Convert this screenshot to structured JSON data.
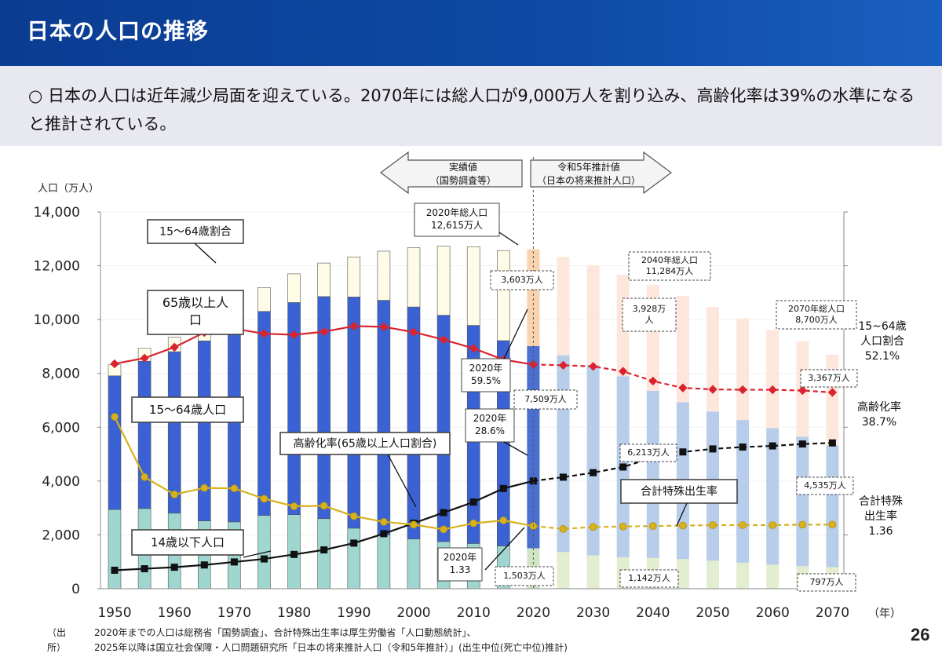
{
  "header": {
    "title": "日本の人口の推移",
    "page_number": "26"
  },
  "summary": {
    "bullet": "○",
    "text": "日本の人口は近年減少局面を迎えている。2070年には総人口が9,000万人を割り込み、高齢化率は39%の水準になると推計されている。"
  },
  "source": {
    "label": "（出所）",
    "line1": "2020年までの人口は総務省「国勢調査」、合計特殊出生率は厚生労働省「人口動態統計」、",
    "line2": "2025年以降は国立社会保障・人口問題研究所「日本の将来推計人口（令和5年推計）」(出生中位(死亡中位)推計)"
  },
  "chart_data": {
    "type": "bar",
    "ylabel": "人口（万人）",
    "xlabel": "（年）",
    "ylim": [
      0,
      14000
    ],
    "yticks": [
      "0",
      "2,000",
      "4,000",
      "6,000",
      "8,000",
      "10,000",
      "12,000",
      "14,000"
    ],
    "xticks": [
      "1950",
      "1960",
      "1970",
      "1980",
      "1990",
      "2000",
      "2010",
      "2020",
      "2030",
      "2040",
      "2050",
      "2060",
      "2070"
    ],
    "projection_start_year": 2020,
    "years": [
      1950,
      1955,
      1960,
      1965,
      1970,
      1975,
      1980,
      1985,
      1990,
      1995,
      2000,
      2005,
      2010,
      2015,
      2020,
      2025,
      2030,
      2035,
      2040,
      2045,
      2050,
      2055,
      2060,
      2065,
      2070
    ],
    "series": [
      {
        "name": "14歳以下人口",
        "values": [
          2943,
          2980,
          2807,
          2517,
          2482,
          2722,
          2751,
          2603,
          2249,
          2001,
          1847,
          1752,
          1680,
          1589,
          1503,
          1363,
          1240,
          1169,
          1142,
          1103,
          1041,
          966,
          893,
          837,
          797
        ]
      },
      {
        "name": "15〜64歳人口",
        "values": [
          4966,
          5473,
          6000,
          6692,
          7157,
          7581,
          7883,
          8251,
          8590,
          8716,
          8622,
          8409,
          8103,
          7629,
          7509,
          7310,
          7076,
          6722,
          6213,
          5832,
          5540,
          5302,
          5078,
          4809,
          4535
        ]
      },
      {
        "name": "65歳以上人口",
        "values": [
          411,
          479,
          535,
          618,
          733,
          887,
          1065,
          1247,
          1489,
          1826,
          2201,
          2567,
          2925,
          3347,
          3603,
          3653,
          3696,
          3773,
          3928,
          3945,
          3888,
          3778,
          3644,
          3542,
          3367
        ]
      }
    ],
    "ratio_axis": {
      "min": 0,
      "max": 100
    },
    "lines": [
      {
        "name": "15〜64歳割合",
        "values": [
          59.7,
          61.2,
          64.1,
          68.0,
          69.0,
          67.7,
          67.4,
          68.2,
          69.7,
          69.5,
          68.1,
          66.1,
          63.8,
          60.8,
          59.5,
          59.3,
          59.0,
          57.7,
          55.1,
          53.3,
          52.9,
          52.8,
          52.8,
          52.6,
          52.1
        ]
      },
      {
        "name": "高齢化率（65歳以上人口割合）",
        "values": [
          4.9,
          5.3,
          5.7,
          6.3,
          7.1,
          7.9,
          9.1,
          10.3,
          12.1,
          14.6,
          17.4,
          20.2,
          23.0,
          26.6,
          28.6,
          29.6,
          30.8,
          32.3,
          34.8,
          36.3,
          37.1,
          37.6,
          37.9,
          38.4,
          38.7
        ]
      },
      {
        "name": "合計特殊出生率",
        "axis_max": 8,
        "values": [
          3.65,
          2.37,
          2.0,
          2.14,
          2.13,
          1.91,
          1.75,
          1.76,
          1.54,
          1.42,
          1.36,
          1.26,
          1.39,
          1.45,
          1.33,
          1.27,
          1.31,
          1.32,
          1.33,
          1.34,
          1.35,
          1.35,
          1.35,
          1.36,
          1.36
        ]
      }
    ],
    "arrows": {
      "actual": [
        "実績値",
        "（国勢調査等）"
      ],
      "projection": [
        "令和5年推計値",
        "（日本の将来推計人口）"
      ]
    },
    "labels": {
      "wa_share": "15〜64歳割合",
      "elderly": [
        "65歳以上人",
        "口"
      ],
      "wa_pop": "15〜64歳人口",
      "aging": "高齢化率(65歳以上人口割合)",
      "child": "14歳以下人口",
      "tfr": "合計特殊出生率"
    },
    "annotations": {
      "total_2020": [
        "2020年総人口",
        "12,615万人"
      ],
      "total_2040": [
        "2040年総人口",
        "11,284万人"
      ],
      "total_2070": [
        "2070年総人口",
        "8,700万人"
      ],
      "elderly_2020": "3,603万人",
      "elderly_2040": [
        "3,928万",
        "人"
      ],
      "elderly_2070": "3,367万人",
      "wa_2020": "7,509万人",
      "wa_2040": "6,213万人",
      "wa_2070": "4,535万人",
      "child_2020": "1,503万人",
      "child_2040": "1,142万人",
      "child_2070": "797万人",
      "wa_share_2020": [
        "2020年",
        "59.5%"
      ],
      "aging_2020": [
        "2020年",
        "28.6%"
      ],
      "tfr_2020": [
        "2020年",
        "1.33"
      ]
    },
    "right_labels": {
      "wa_share": [
        "15~64歳",
        "人口割合",
        "52.1%"
      ],
      "aging": [
        "高齢化率",
        "38.7%"
      ],
      "tfr": [
        "合計特殊",
        "出生率",
        "1.36"
      ]
    },
    "colors": {
      "child": "#9fd6cf",
      "wa": "#3a62d4",
      "elderly": "#fefbe6",
      "child_proj": "#e3edcf",
      "wa_proj": "#b7cdea",
      "elderly_proj": "#fde6dc",
      "wa_share_line": "#d9232f",
      "aging_line": "#111111",
      "tfr_line": "#d6b21e"
    }
  }
}
